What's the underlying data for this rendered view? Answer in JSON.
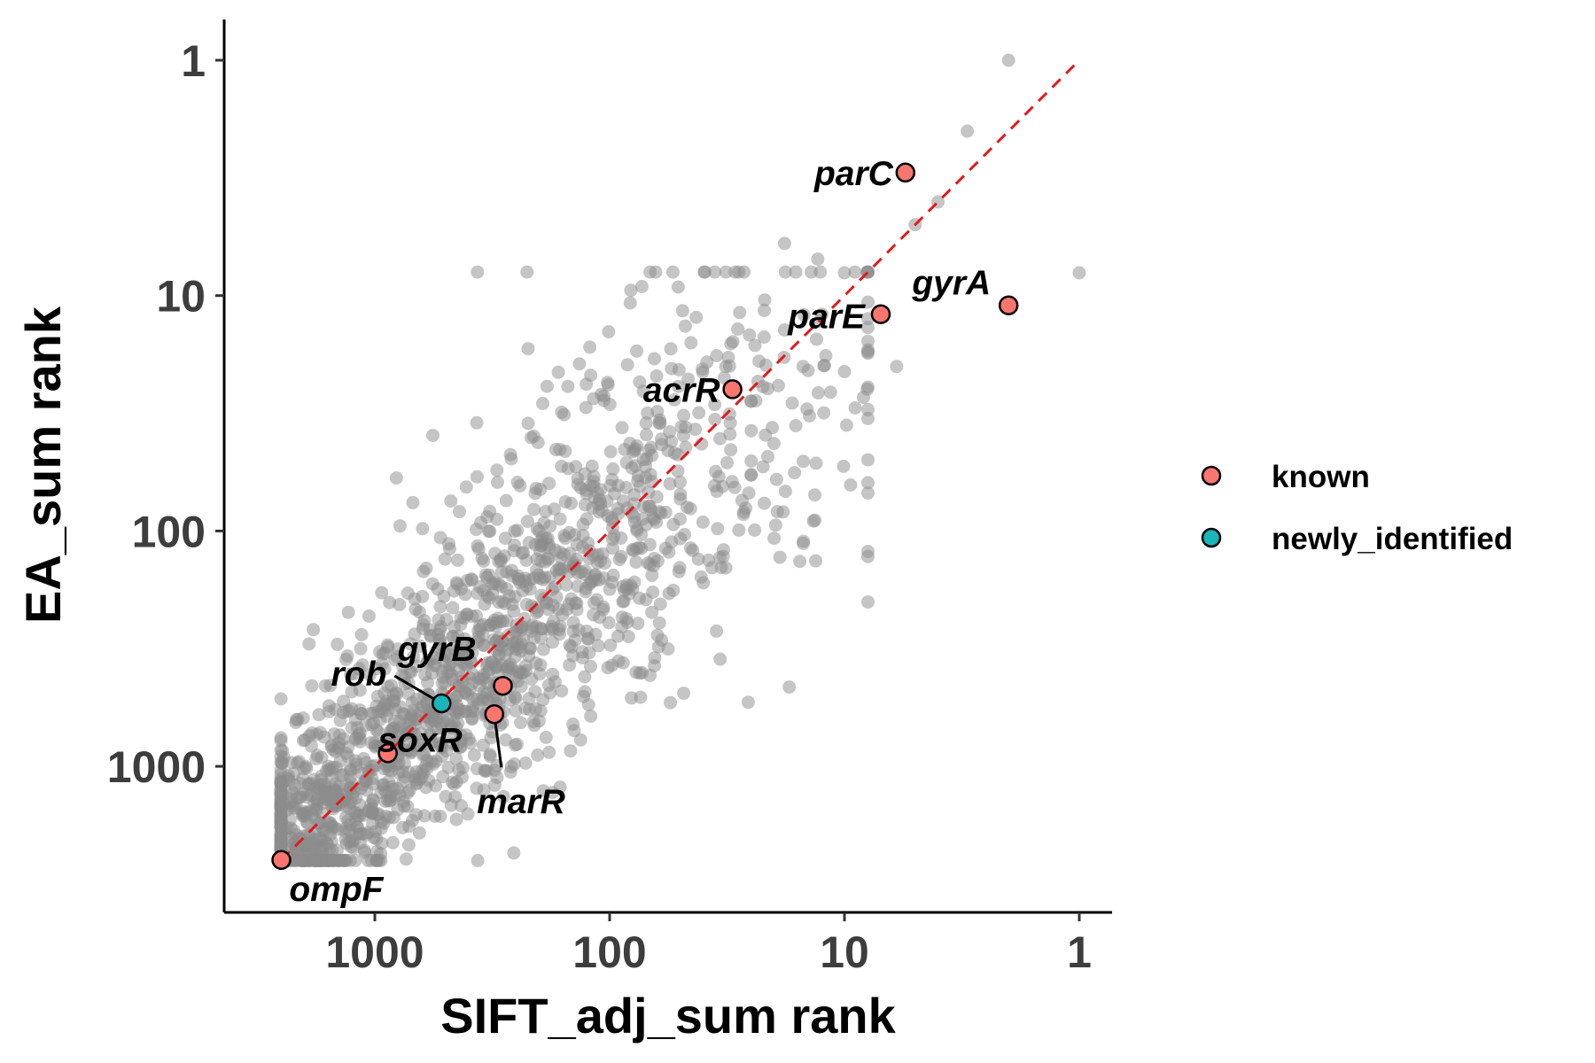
{
  "chart_data": {
    "type": "scatter",
    "xlabel": "SIFT_adj_sum rank",
    "ylabel": "EA_sum rank",
    "x_scale": "log-reversed",
    "y_scale": "log-reversed",
    "xlim": [
      2900,
      0.75
    ],
    "ylim": [
      2900,
      0.75
    ],
    "x_ticks": [
      1000,
      100,
      10,
      1
    ],
    "y_ticks": [
      1,
      10,
      100,
      1000
    ],
    "x_tick_labels": [
      "1000",
      "100",
      "10",
      "1"
    ],
    "y_tick_labels": [
      "1",
      "10",
      "100",
      "1000"
    ],
    "grid": false,
    "legend_position": "right",
    "reference_line": {
      "style": "dashed",
      "color": "#e3191c",
      "from": [
        2500,
        2500
      ],
      "to": [
        1,
        1
      ]
    },
    "background_points_color": "#8c8c8c",
    "series": [
      {
        "name": "known",
        "color": "#f8766d",
        "points": [
          {
            "label": "parC",
            "x": 5.5,
            "y": 3
          },
          {
            "label": "gyrA",
            "x": 2,
            "y": 11
          },
          {
            "label": "parE",
            "x": 7,
            "y": 12
          },
          {
            "label": "acrR",
            "x": 30,
            "y": 25
          },
          {
            "label": "gyrB",
            "x": 285,
            "y": 455
          },
          {
            "label": "marR",
            "x": 310,
            "y": 600
          },
          {
            "label": "soxR",
            "x": 880,
            "y": 880
          },
          {
            "label": "ompF",
            "x": 2500,
            "y": 2500
          }
        ]
      },
      {
        "name": "newly_identified",
        "color": "#1ab5b8",
        "points": [
          {
            "label": "rob",
            "x": 520,
            "y": 540
          }
        ]
      }
    ],
    "outlier_points": [
      [
        2,
        1
      ],
      [
        3,
        2
      ],
      [
        4,
        4
      ],
      [
        5,
        5
      ],
      [
        10,
        8
      ],
      [
        13,
        7
      ],
      [
        18,
        6
      ],
      [
        1,
        8
      ],
      [
        18,
        14
      ],
      [
        12,
        18
      ],
      [
        8,
        25
      ],
      [
        15,
        20
      ],
      [
        22,
        15
      ],
      [
        6,
        20
      ],
      [
        9,
        30
      ],
      [
        35,
        18
      ],
      [
        25,
        28
      ],
      [
        32,
        20
      ],
      [
        200,
        100
      ],
      [
        50,
        70
      ]
    ]
  }
}
